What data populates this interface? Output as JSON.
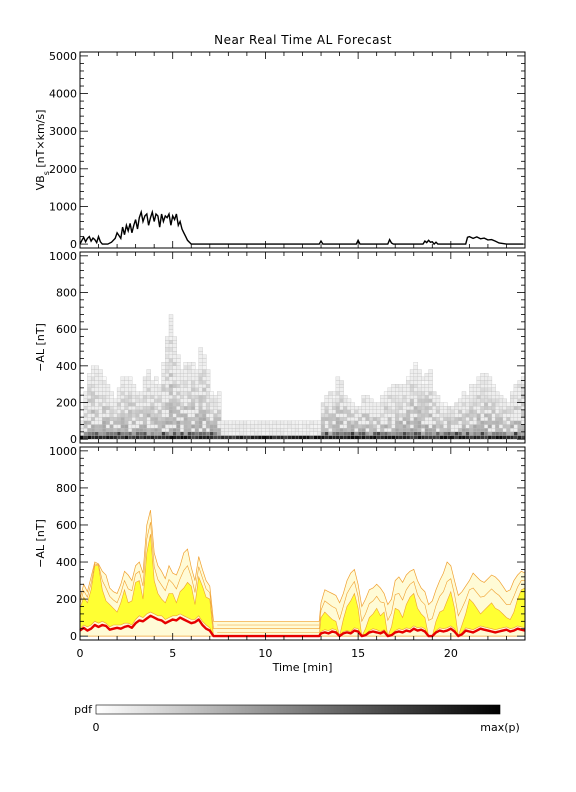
{
  "title": "Near Real Time AL Forecast",
  "chart_data": [
    {
      "type": "line",
      "panel": "vbs",
      "ylabel_main": "VB",
      "ylabel_sub": "s",
      "ylabel_rest": " [nT×km/s]",
      "xlim": [
        0,
        24
      ],
      "ylim": [
        0,
        5000
      ],
      "yticks": [
        "0",
        "1000",
        "2000",
        "3000",
        "4000",
        "5000"
      ],
      "ytick_values": [
        0,
        1000,
        2000,
        3000,
        4000,
        5000
      ],
      "series": [
        {
          "color": "#000000",
          "x": [
            0,
            0.1,
            0.2,
            0.3,
            0.4,
            0.5,
            0.6,
            0.7,
            0.8,
            0.9,
            1.0,
            1.1,
            1.2,
            1.3,
            1.5,
            1.7,
            1.9,
            2.0,
            2.2,
            2.3,
            2.4,
            2.5,
            2.6,
            2.7,
            2.8,
            2.9,
            3.0,
            3.1,
            3.2,
            3.3,
            3.4,
            3.5,
            3.6,
            3.7,
            3.8,
            3.9,
            4.0,
            4.1,
            4.2,
            4.3,
            4.4,
            4.5,
            4.6,
            4.7,
            4.8,
            4.9,
            5.0,
            5.1,
            5.2,
            5.3,
            5.4,
            5.5,
            5.6,
            5.7,
            5.8,
            5.9,
            6.0,
            6.2,
            6.5,
            7.0,
            8.0,
            9.0,
            10.0,
            11.0,
            12.0,
            12.9,
            13.0,
            13.1,
            13.2,
            14.0,
            14.9,
            15.0,
            15.1,
            15.2,
            16.0,
            16.6,
            16.7,
            16.8,
            16.9,
            17.0,
            18.0,
            18.5,
            18.6,
            18.7,
            18.8,
            18.9,
            19.0,
            19.1,
            19.2,
            19.3,
            20.0,
            20.8,
            20.9,
            21.0,
            21.2,
            21.4,
            21.6,
            21.8,
            22.0,
            22.2,
            22.4,
            22.6,
            23.0,
            23.5,
            23.9
          ],
          "y": [
            0,
            100,
            180,
            60,
            150,
            200,
            80,
            160,
            120,
            40,
            200,
            60,
            0,
            0,
            0,
            50,
            150,
            300,
            150,
            450,
            250,
            500,
            350,
            550,
            300,
            500,
            650,
            400,
            700,
            850,
            600,
            750,
            800,
            500,
            700,
            850,
            600,
            800,
            750,
            450,
            800,
            600,
            750,
            700,
            800,
            500,
            750,
            650,
            800,
            500,
            600,
            400,
            300,
            200,
            100,
            50,
            0,
            0,
            0,
            0,
            0,
            0,
            0,
            0,
            0,
            0,
            80,
            0,
            0,
            0,
            0,
            100,
            0,
            0,
            0,
            0,
            120,
            30,
            0,
            0,
            0,
            0,
            80,
            40,
            100,
            50,
            60,
            0,
            50,
            0,
            0,
            0,
            180,
            200,
            150,
            190,
            140,
            160,
            110,
            120,
            80,
            30,
            0,
            0,
            0
          ]
        }
      ]
    },
    {
      "type": "heatmap",
      "panel": "pdf",
      "ylabel": "−AL [nT]",
      "xlim": [
        0,
        24
      ],
      "ylim": [
        0,
        1000
      ],
      "yticks": [
        "0",
        "200",
        "400",
        "600",
        "800",
        "1000"
      ],
      "ytick_values": [
        0,
        200,
        400,
        600,
        800,
        1000
      ],
      "x_cols": 120,
      "ytop": [
        100,
        250,
        350,
        400,
        400,
        380,
        340,
        300,
        250,
        220,
        280,
        330,
        340,
        340,
        290,
        250,
        260,
        330,
        380,
        320,
        330,
        300,
        420,
        560,
        680,
        560,
        450,
        380,
        420,
        420,
        420,
        380,
        500,
        460,
        370,
        260,
        230,
        250,
        100,
        100,
        100,
        100,
        100,
        100,
        100,
        100,
        100,
        100,
        100,
        100,
        100,
        100,
        100,
        100,
        100,
        100,
        100,
        100,
        100,
        100,
        100,
        100,
        100,
        100,
        100,
        200,
        240,
        260,
        260,
        340,
        310,
        240,
        220,
        200,
        180,
        180,
        240,
        240,
        210,
        190,
        190,
        240,
        260,
        280,
        300,
        300,
        290,
        290,
        340,
        380,
        410,
        380,
        330,
        350,
        380,
        260,
        240,
        200,
        190,
        180,
        180,
        190,
        220,
        260,
        230,
        290,
        300,
        330,
        350,
        350,
        330,
        300,
        260,
        240,
        210,
        200,
        260,
        300,
        320,
        340
      ]
    },
    {
      "type": "area",
      "panel": "forecast",
      "ylabel": "−AL [nT]",
      "xlabel": "Time [min]",
      "xlim": [
        0,
        24
      ],
      "ylim": [
        0,
        1000
      ],
      "xticks": [
        "0",
        "5",
        "10",
        "15",
        "20"
      ],
      "xtick_values": [
        0,
        5,
        10,
        15,
        20
      ],
      "yticks": [
        "0",
        "200",
        "400",
        "600",
        "800",
        "1000"
      ],
      "ytick_values": [
        0,
        200,
        400,
        600,
        800,
        1000
      ],
      "band_color": "#ffff33",
      "envelope_color": "#f0a030",
      "median_color": "#e60000",
      "x": [
        0,
        0.2,
        0.4,
        0.6,
        0.8,
        1.0,
        1.2,
        1.4,
        1.6,
        1.8,
        2.0,
        2.2,
        2.4,
        2.6,
        2.8,
        3.0,
        3.2,
        3.4,
        3.6,
        3.8,
        4.0,
        4.2,
        4.4,
        4.6,
        4.8,
        5.0,
        5.2,
        5.4,
        5.6,
        5.8,
        6.0,
        6.2,
        6.4,
        6.6,
        6.8,
        7.0,
        7.2,
        7.4,
        8.0,
        9.0,
        10.0,
        11.0,
        12.0,
        12.9,
        13.0,
        13.2,
        13.4,
        13.6,
        13.8,
        14.0,
        14.2,
        14.4,
        14.6,
        14.8,
        15.0,
        15.2,
        15.4,
        15.6,
        15.8,
        16.0,
        16.2,
        16.4,
        16.6,
        16.8,
        17.0,
        17.2,
        17.4,
        17.6,
        17.8,
        18.0,
        18.2,
        18.4,
        18.6,
        18.8,
        19.0,
        19.2,
        19.4,
        19.6,
        19.8,
        20.0,
        20.2,
        20.4,
        20.6,
        20.8,
        21.0,
        21.2,
        21.4,
        21.6,
        21.8,
        22.0,
        22.2,
        22.4,
        22.6,
        22.8,
        23.0,
        23.2,
        23.4,
        23.6,
        23.8,
        24.0
      ],
      "median": [
        30,
        45,
        30,
        40,
        60,
        50,
        60,
        55,
        35,
        40,
        45,
        40,
        50,
        55,
        45,
        70,
        85,
        80,
        95,
        110,
        100,
        90,
        85,
        70,
        80,
        90,
        85,
        100,
        90,
        80,
        70,
        75,
        90,
        60,
        40,
        30,
        0,
        0,
        0,
        0,
        0,
        0,
        0,
        0,
        15,
        20,
        15,
        25,
        20,
        0,
        15,
        20,
        15,
        30,
        25,
        0,
        5,
        20,
        25,
        20,
        15,
        25,
        0,
        5,
        20,
        25,
        20,
        30,
        25,
        40,
        30,
        35,
        25,
        0,
        0,
        20,
        30,
        25,
        30,
        40,
        25,
        0,
        10,
        30,
        25,
        20,
        30,
        40,
        35,
        30,
        25,
        20,
        25,
        30,
        35,
        25,
        30,
        40,
        35,
        30
      ],
      "band_low": [
        40,
        60,
        50,
        60,
        80,
        70,
        80,
        70,
        50,
        60,
        60,
        60,
        70,
        70,
        60,
        90,
        110,
        100,
        120,
        130,
        120,
        110,
        110,
        90,
        100,
        110,
        110,
        120,
        110,
        100,
        90,
        90,
        110,
        80,
        60,
        45,
        0,
        0,
        0,
        0,
        0,
        0,
        0,
        0,
        25,
        35,
        30,
        40,
        35,
        0,
        25,
        30,
        25,
        45,
        40,
        0,
        10,
        30,
        40,
        35,
        25,
        35,
        0,
        10,
        30,
        40,
        35,
        45,
        40,
        55,
        45,
        50,
        40,
        0,
        0,
        30,
        45,
        40,
        45,
        55,
        40,
        0,
        20,
        45,
        40,
        35,
        45,
        55,
        50,
        45,
        40,
        35,
        40,
        45,
        50,
        40,
        45,
        55,
        50,
        45
      ],
      "band_high": [
        150,
        210,
        180,
        250,
        380,
        380,
        250,
        190,
        170,
        150,
        130,
        180,
        250,
        180,
        190,
        290,
        300,
        200,
        450,
        550,
        300,
        230,
        200,
        180,
        230,
        230,
        180,
        240,
        260,
        290,
        270,
        170,
        320,
        270,
        210,
        200,
        0,
        0,
        0,
        0,
        0,
        0,
        0,
        0,
        100,
        130,
        110,
        90,
        80,
        0,
        90,
        160,
        190,
        230,
        150,
        0,
        40,
        100,
        120,
        150,
        110,
        130,
        0,
        50,
        150,
        140,
        100,
        170,
        210,
        230,
        150,
        120,
        100,
        0,
        0,
        80,
        130,
        140,
        190,
        240,
        150,
        0,
        60,
        120,
        200,
        180,
        150,
        120,
        140,
        160,
        180,
        150,
        140,
        120,
        100,
        90,
        130,
        200,
        250,
        260
      ],
      "envelope_high": [
        200,
        280,
        240,
        320,
        400,
        390,
        350,
        330,
        260,
        240,
        230,
        280,
        350,
        330,
        300,
        380,
        400,
        340,
        600,
        680,
        450,
        380,
        350,
        310,
        380,
        340,
        330,
        380,
        450,
        470,
        370,
        300,
        430,
        360,
        300,
        270,
        80,
        80,
        80,
        80,
        80,
        80,
        80,
        80,
        180,
        250,
        240,
        230,
        220,
        180,
        230,
        300,
        340,
        360,
        280,
        160,
        200,
        250,
        260,
        280,
        260,
        230,
        170,
        200,
        300,
        320,
        290,
        330,
        350,
        360,
        300,
        260,
        240,
        170,
        190,
        250,
        300,
        340,
        400,
        380,
        300,
        220,
        240,
        270,
        300,
        340,
        320,
        300,
        290,
        310,
        330,
        320,
        300,
        270,
        240,
        250,
        300,
        330,
        350,
        340
      ]
    }
  ],
  "colorbar": {
    "label": "pdf",
    "min_label": "0",
    "max_label": "max(p)"
  }
}
